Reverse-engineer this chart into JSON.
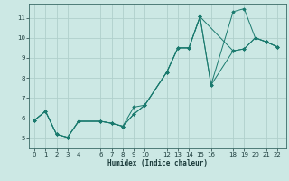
{
  "xlabel": "Humidex (Indice chaleur)",
  "xlim": [
    -0.5,
    22.8
  ],
  "ylim": [
    4.5,
    11.7
  ],
  "xticks": [
    0,
    1,
    2,
    3,
    4,
    6,
    7,
    8,
    9,
    10,
    12,
    13,
    14,
    15,
    16,
    18,
    19,
    20,
    21,
    22
  ],
  "yticks": [
    5,
    6,
    7,
    8,
    9,
    10,
    11
  ],
  "bg_color": "#cce8e4",
  "grid_color": "#b0d0cc",
  "line_color": "#1a7a6e",
  "series": [
    {
      "x": [
        0,
        1,
        2,
        3,
        4,
        6,
        7,
        8,
        9,
        10,
        12,
        13,
        14,
        15,
        16,
        18,
        19,
        20,
        21,
        22
      ],
      "y": [
        5.9,
        6.35,
        5.2,
        5.05,
        5.85,
        5.85,
        5.75,
        5.6,
        6.2,
        6.65,
        8.3,
        9.5,
        9.5,
        11.05,
        7.65,
        9.35,
        9.45,
        10.0,
        9.8,
        9.55
      ]
    },
    {
      "x": [
        0,
        1,
        2,
        3,
        4,
        6,
        7,
        8,
        9,
        10,
        12,
        13,
        14,
        15,
        16,
        18,
        19,
        20,
        21,
        22
      ],
      "y": [
        5.9,
        6.35,
        5.2,
        5.05,
        5.85,
        5.85,
        5.75,
        5.6,
        6.2,
        6.65,
        8.3,
        9.5,
        9.5,
        11.05,
        7.65,
        11.3,
        11.45,
        10.0,
        9.8,
        9.55
      ]
    },
    {
      "x": [
        0,
        1,
        2,
        3,
        4,
        6,
        7,
        8,
        9,
        10,
        12,
        13,
        14,
        15,
        18,
        19,
        20,
        21,
        22
      ],
      "y": [
        5.9,
        6.35,
        5.2,
        5.05,
        5.85,
        5.85,
        5.75,
        5.6,
        6.55,
        6.65,
        8.3,
        9.5,
        9.5,
        11.05,
        9.35,
        9.45,
        10.0,
        9.8,
        9.55
      ]
    }
  ]
}
